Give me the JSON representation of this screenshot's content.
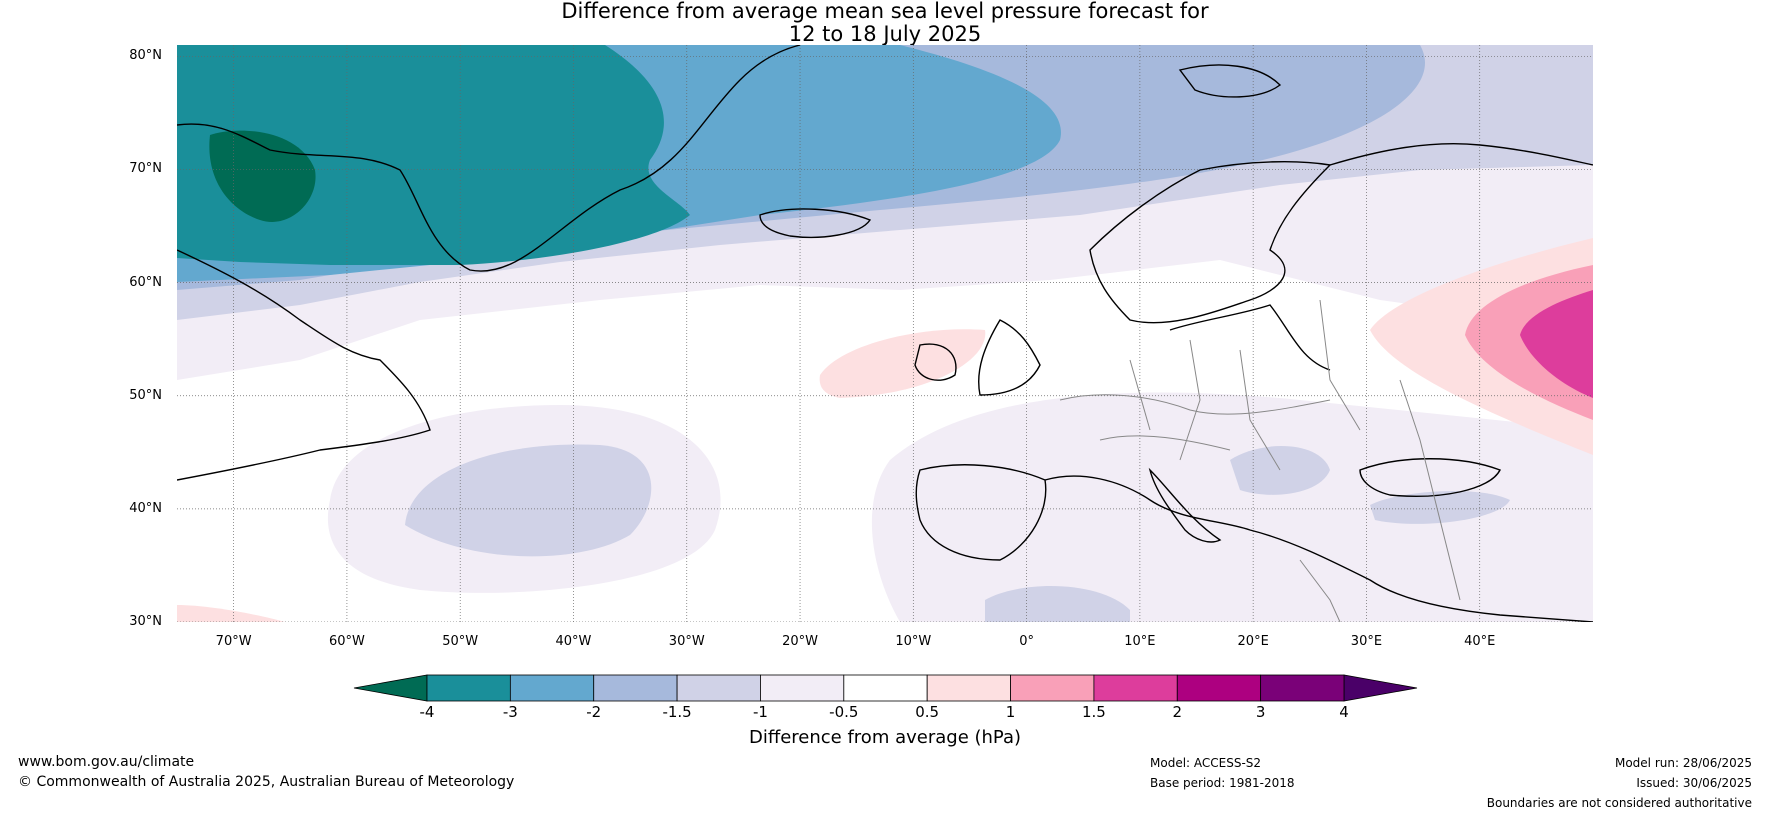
{
  "title_lines": [
    "Difference from average mean sea level pressure forecast for",
    "12 to 18 July 2025"
  ],
  "map": {
    "lon_range": [
      -75,
      50
    ],
    "lat_range": [
      30,
      81
    ],
    "lat_ticks": [
      {
        "value": 80,
        "label": "80°N"
      },
      {
        "value": 70,
        "label": "70°N"
      },
      {
        "value": 60,
        "label": "60°N"
      },
      {
        "value": 50,
        "label": "50°N"
      },
      {
        "value": 40,
        "label": "40°N"
      },
      {
        "value": 30,
        "label": "30°N"
      }
    ],
    "lon_ticks": [
      {
        "value": -70,
        "label": "70°W"
      },
      {
        "value": -60,
        "label": "60°W"
      },
      {
        "value": -50,
        "label": "50°W"
      },
      {
        "value": -40,
        "label": "40°W"
      },
      {
        "value": -30,
        "label": "30°W"
      },
      {
        "value": -20,
        "label": "20°W"
      },
      {
        "value": -10,
        "label": "10°W"
      },
      {
        "value": 0,
        "label": "0°"
      },
      {
        "value": 10,
        "label": "10°E"
      },
      {
        "value": 20,
        "label": "20°E"
      },
      {
        "value": 30,
        "label": "30°E"
      },
      {
        "value": 40,
        "label": "40°E"
      }
    ],
    "gridlines": "dotted"
  },
  "legend": {
    "label": "Difference from average (hPa)",
    "tick_labels": [
      "-4",
      "-3",
      "-2",
      "-1.5",
      "-1",
      "-0.5",
      "0.5",
      "1",
      "1.5",
      "2",
      "3",
      "4"
    ],
    "colors": {
      "below_-4": "#006b54",
      "-4_to_-3": "#1a8f9a",
      "-3_to_-2": "#63a8cf",
      "-2_to_-1.5": "#a6b9dc",
      "-1.5_to_-1": "#d0d2e7",
      "-1_to_-0.5": "#f2edf6",
      "-0.5_to_0.5": "#ffffff",
      "0.5_to_1": "#fde0e1",
      "1_to_1.5": "#f9a0b8",
      "1.5_to_2": "#dd3d9c",
      "2_to_3": "#ad0080",
      "3_to_4": "#7a0178",
      "above_4": "#4a0068"
    }
  },
  "footer": {
    "website": "www.bom.gov.au/climate",
    "copyright": "© Commonwealth of Australia 2025, Australian Bureau of Meteorology",
    "model": "Model: ACCESS-S2",
    "base_period": "Base period: 1981-2018",
    "model_run": "Model run: 28/06/2025",
    "issued": "Issued: 30/06/2025",
    "disclaimer": "Boundaries are not considered authoritative"
  }
}
